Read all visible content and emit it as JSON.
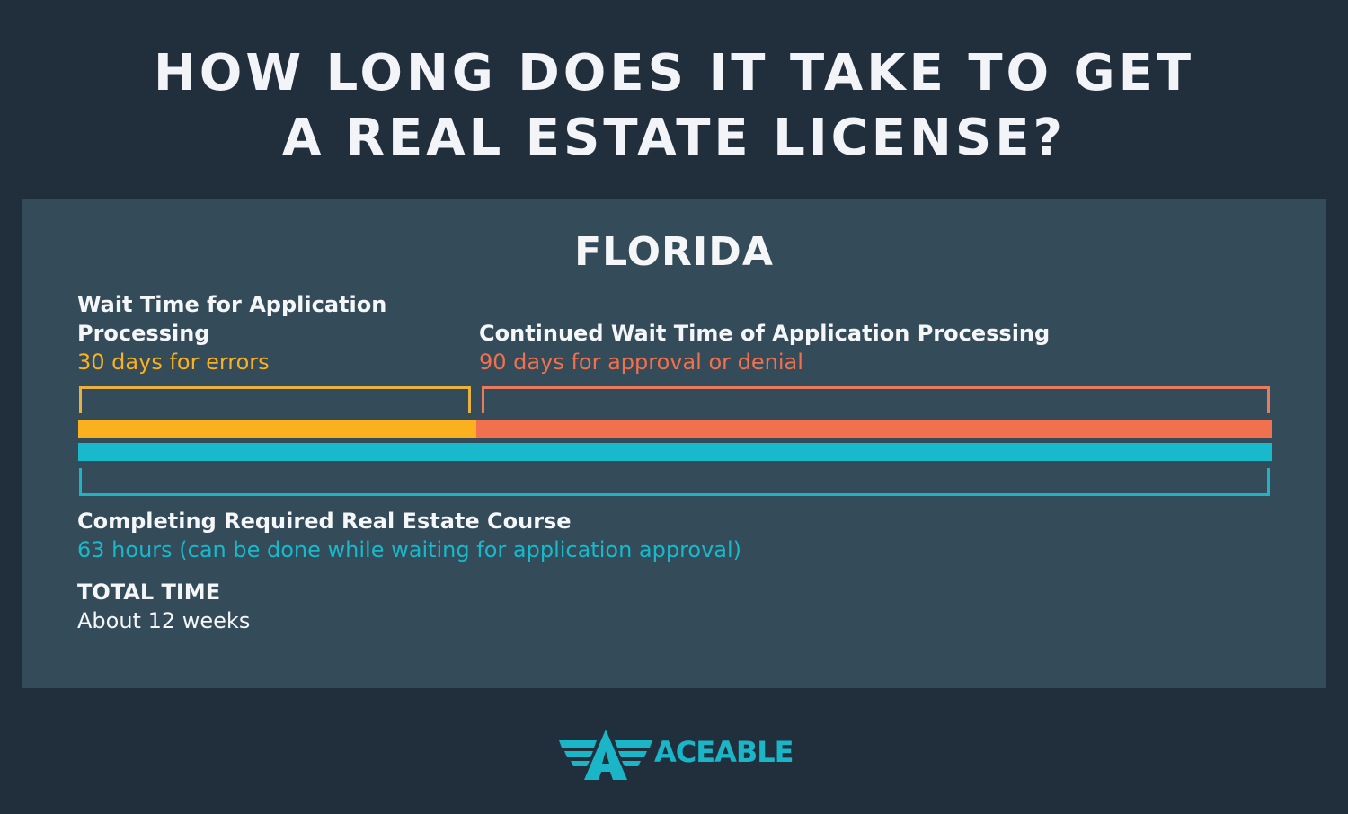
{
  "header": {
    "title_line1": "HOW LONG DOES IT TAKE TO GET",
    "title_line2": "A REAL ESTATE LICENSE?"
  },
  "panel": {
    "state": "FLORIDA",
    "segment1": {
      "label_line1": "Wait Time for Application",
      "label_line2": "Processing",
      "detail": "30 days for errors",
      "color": "#fbb11f"
    },
    "segment2": {
      "label": "Continued Wait Time of Application Processing",
      "detail": "90 days for approval or denial",
      "color": "#f1714f"
    },
    "course": {
      "label": "Completing Required Real Estate Course",
      "detail": "63 hours (can be done while waiting for application approval)",
      "color": "#17b9cb"
    },
    "total": {
      "label": "TOTAL TIME",
      "value": "About 12 weeks"
    }
  },
  "logo": {
    "text": "ACEABLE",
    "color": "#1bb5c8"
  },
  "colors": {
    "background": "#212f3d",
    "panel": "#344b5a"
  }
}
